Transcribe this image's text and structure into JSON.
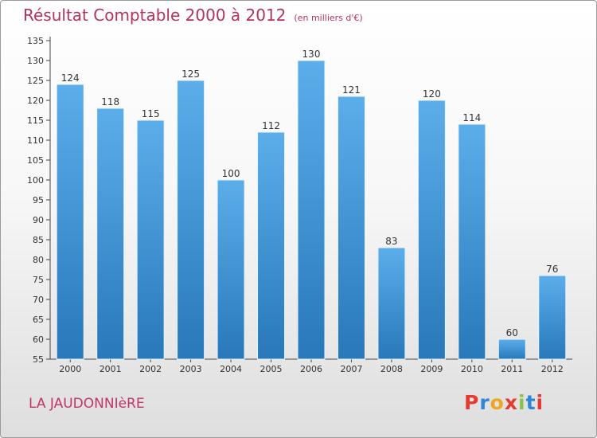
{
  "title": "Résultat Comptable 2000 à 2012",
  "subtitle": "(en milliers d'€)",
  "commune": "LA JAUDONNIèRE",
  "logo": {
    "letters": [
      "P",
      "r",
      "o",
      "x",
      "i",
      "t",
      "i"
    ],
    "colors": [
      "#e53b2f",
      "#2f86d6",
      "#f2a51f",
      "#e53b2f",
      "#8bc34a",
      "#2f86d6",
      "#e53b2f"
    ]
  },
  "colors": {
    "bar_top": "#5baeea",
    "bar_bottom": "#2878ba",
    "title": "#b5325f"
  },
  "chart_data": {
    "type": "bar",
    "categories": [
      "2000",
      "2001",
      "2002",
      "2003",
      "2004",
      "2005",
      "2006",
      "2007",
      "2008",
      "2009",
      "2010",
      "2011",
      "2012"
    ],
    "values": [
      124,
      118,
      115,
      125,
      100,
      112,
      130,
      121,
      83,
      120,
      114,
      60,
      76
    ],
    "title": "Résultat Comptable 2000 à 2012",
    "xlabel": "",
    "ylabel": "",
    "ylim": [
      55,
      135
    ],
    "yticks": [
      55,
      60,
      65,
      70,
      75,
      80,
      85,
      90,
      95,
      100,
      105,
      110,
      115,
      120,
      125,
      130,
      135
    ],
    "grid": false,
    "legend": "none"
  }
}
